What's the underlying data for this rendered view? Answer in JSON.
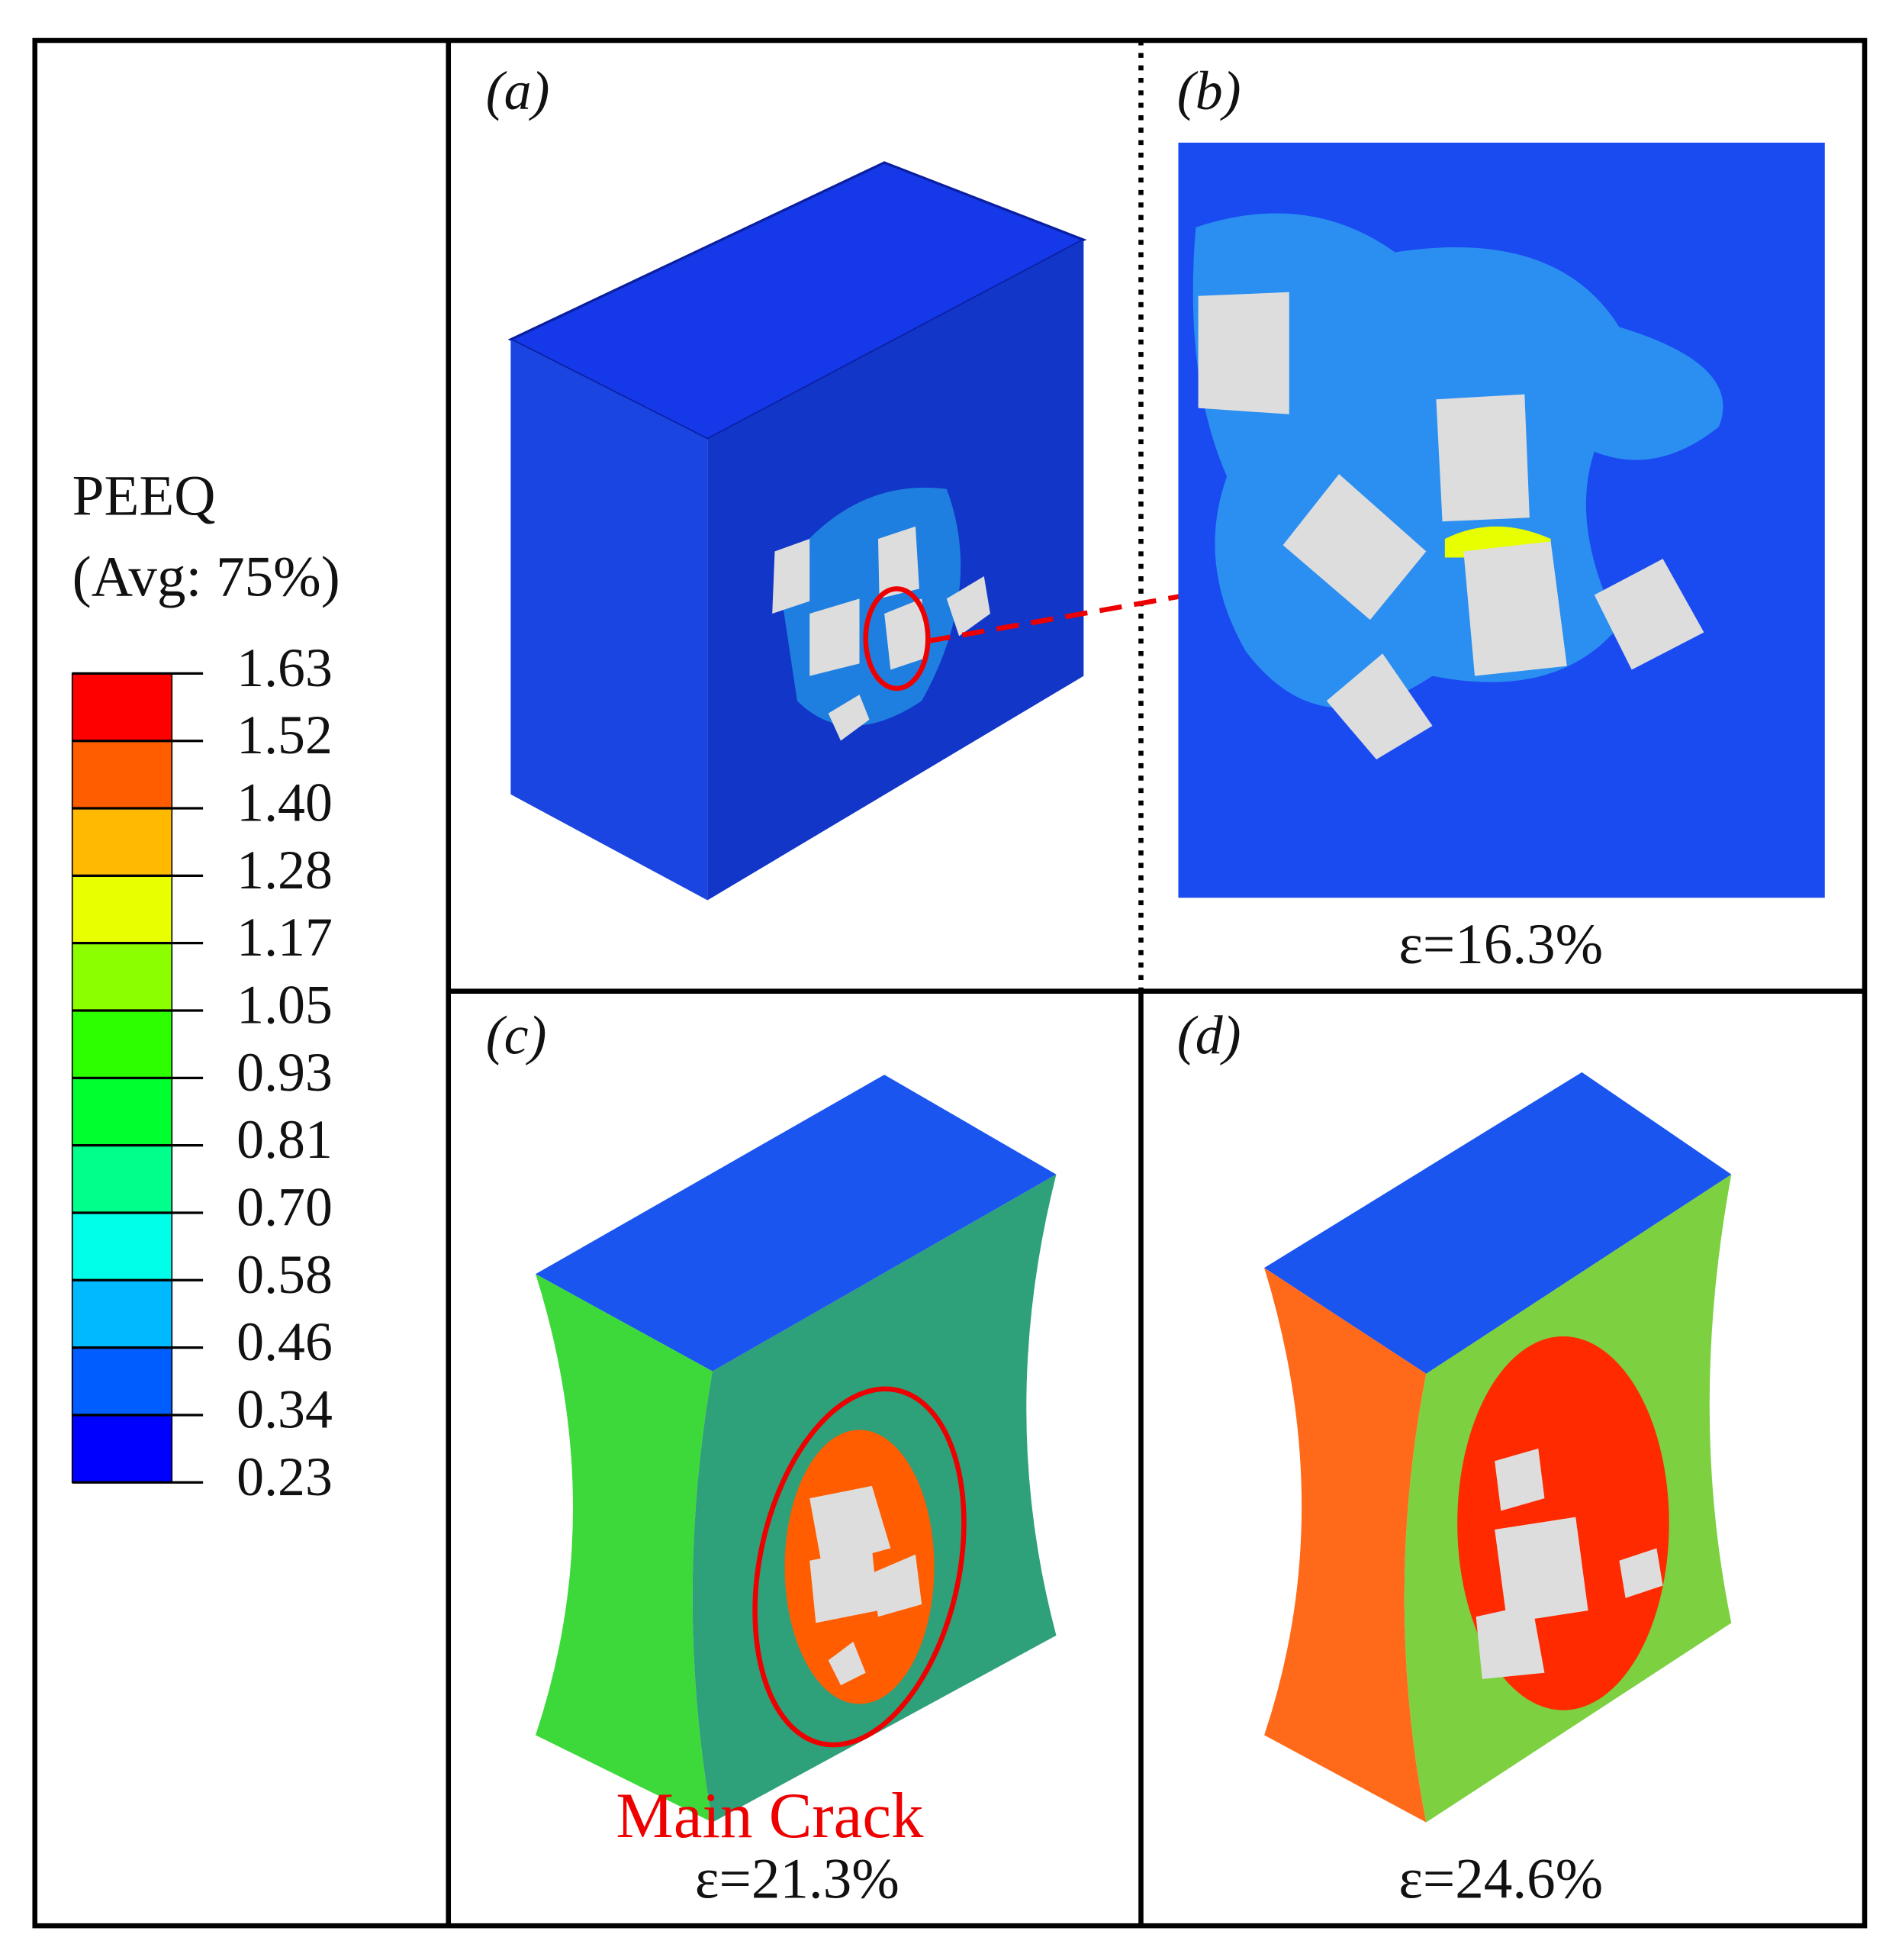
{
  "legend": {
    "title": "PEEQ",
    "subtitle": "(Avg: 75%)",
    "labels": [
      "1.63",
      "1.52",
      "1.40",
      "1.28",
      "1.17",
      "1.05",
      "0.93",
      "0.81",
      "0.70",
      "0.58",
      "0.46",
      "0.34",
      "0.23"
    ],
    "colors": [
      "#ff0000",
      "#ff5d00",
      "#ffb900",
      "#e8ff00",
      "#8bff00",
      "#2eff00",
      "#00ff2e",
      "#00ff8b",
      "#00ffe8",
      "#00b9ff",
      "#005dff",
      "#0000ff"
    ]
  },
  "panels": [
    {
      "label": "(a)"
    },
    {
      "label": "(b)",
      "caption": "ε=16.3%"
    },
    {
      "label": "(c)",
      "annotation": "Main Crack",
      "caption": "ε=21.3%"
    },
    {
      "label": "(d)",
      "caption": "ε=24.6%"
    }
  ]
}
